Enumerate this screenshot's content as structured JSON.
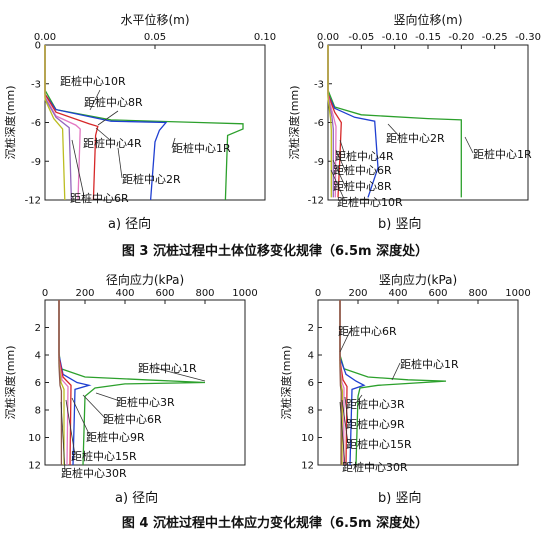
{
  "figure3": {
    "caption": "图 3   沉桩过程中土体位移变化规律（6.5m 深度处）",
    "sub_a": "a) 径向",
    "sub_b": "b) 竖向"
  },
  "figure4": {
    "caption": "图 4   沉桩过程中土体应力变化规律（6.5m 深度处）",
    "sub_a": "a) 径向",
    "sub_b": "b) 竖向"
  },
  "chart_data": [
    {
      "id": "fig3a",
      "type": "line",
      "title": "水平位移(m)",
      "ylabel": "沉桩深度(mm)",
      "xlim": [
        0,
        0.1
      ],
      "x_ticks": [
        0.0,
        0.05,
        0.1
      ],
      "x_tick_labels": [
        "0.00",
        "0.05",
        "0.10"
      ],
      "ylim": [
        -12,
        0
      ],
      "y_ticks": [
        0,
        -3,
        -6,
        -9,
        -12
      ],
      "series": [
        {
          "name": "距桩中心1R",
          "color": "#2ca02c",
          "points": [
            [
              0,
              0
            ],
            [
              0,
              -3.5
            ],
            [
              0.005,
              -5.0
            ],
            [
              0.03,
              -5.8
            ],
            [
              0.07,
              -6.0
            ],
            [
              0.09,
              -6.1
            ],
            [
              0.09,
              -6.5
            ],
            [
              0.083,
              -7.0
            ],
            [
              0.082,
              -12
            ]
          ]
        },
        {
          "name": "距桩中心2R",
          "color": "#1f3fd1",
          "points": [
            [
              0,
              0
            ],
            [
              0,
              -3.8
            ],
            [
              0.005,
              -5.0
            ],
            [
              0.03,
              -5.9
            ],
            [
              0.055,
              -6.0
            ],
            [
              0.052,
              -6.6
            ],
            [
              0.05,
              -7.5
            ],
            [
              0.048,
              -12
            ]
          ]
        },
        {
          "name": "距桩中心4R",
          "color": "#d62728",
          "points": [
            [
              0,
              0
            ],
            [
              0,
              -3.8
            ],
            [
              0.005,
              -5.2
            ],
            [
              0.02,
              -6.1
            ],
            [
              0.024,
              -6.3
            ],
            [
              0.023,
              -7.0
            ],
            [
              0.022,
              -12
            ]
          ]
        },
        {
          "name": "距桩中心6R",
          "color": "#e377c2",
          "points": [
            [
              0,
              0
            ],
            [
              0,
              -4.0
            ],
            [
              0.005,
              -5.5
            ],
            [
              0.014,
              -6.2
            ],
            [
              0.016,
              -6.5
            ],
            [
              0.015,
              -12
            ]
          ]
        },
        {
          "name": "距桩中心8R",
          "color": "#9467bd",
          "points": [
            [
              0,
              0
            ],
            [
              0,
              -4.1
            ],
            [
              0.005,
              -5.6
            ],
            [
              0.011,
              -6.4
            ],
            [
              0.012,
              -12
            ]
          ]
        },
        {
          "name": "距桩中心10R",
          "color": "#bcbd22",
          "points": [
            [
              0,
              0
            ],
            [
              0,
              -4.2
            ],
            [
              0.004,
              -5.7
            ],
            [
              0.008,
              -6.5
            ],
            [
              0.009,
              -12
            ]
          ]
        }
      ],
      "labels": [
        "距桩中心10R",
        "距桩中心8R",
        "距桩中心4R",
        "距桩中心1R",
        "距桩中心2R",
        "距桩中心6R"
      ]
    },
    {
      "id": "fig3b",
      "type": "line",
      "title": "竖向位移(m)",
      "ylabel": "沉桩深度(mm)",
      "xlim": [
        0,
        -0.3
      ],
      "x_ticks": [
        0,
        -0.05,
        -0.1,
        -0.15,
        -0.2,
        -0.25,
        -0.3
      ],
      "x_tick_labels": [
        "0.00",
        "-0.05",
        "-0.10",
        "-0.15",
        "-0.20",
        "-0.25",
        "-0.30"
      ],
      "ylim": [
        -12,
        0
      ],
      "y_ticks": [
        0,
        -3,
        -6,
        -9,
        -12
      ],
      "series": [
        {
          "name": "距桩中心1R",
          "color": "#2ca02c",
          "points": [
            [
              0,
              0
            ],
            [
              0,
              -3.5
            ],
            [
              -0.01,
              -4.8
            ],
            [
              -0.05,
              -5.4
            ],
            [
              -0.15,
              -5.7
            ],
            [
              -0.2,
              -5.8
            ],
            [
              -0.2,
              -11.8
            ]
          ]
        },
        {
          "name": "距桩中心2R",
          "color": "#1f3fd1",
          "points": [
            [
              0,
              0
            ],
            [
              0,
              -3.8
            ],
            [
              -0.01,
              -4.9
            ],
            [
              -0.04,
              -5.6
            ],
            [
              -0.07,
              -5.9
            ],
            [
              -0.075,
              -9.5
            ],
            [
              -0.06,
              -11.8
            ]
          ]
        },
        {
          "name": "距桩中心4R",
          "color": "#d62728",
          "points": [
            [
              0,
              0
            ],
            [
              0,
              -3.8
            ],
            [
              -0.01,
              -5.2
            ],
            [
              -0.02,
              -6.0
            ],
            [
              -0.018,
              -8.5
            ],
            [
              -0.015,
              -11.8
            ]
          ]
        },
        {
          "name": "距桩中心6R",
          "color": "#e377c2",
          "points": [
            [
              0,
              0
            ],
            [
              0,
              -3.9
            ],
            [
              -0.008,
              -5.5
            ],
            [
              -0.012,
              -6.3
            ],
            [
              -0.011,
              -11.8
            ]
          ]
        },
        {
          "name": "距桩中心8R",
          "color": "#9467bd",
          "points": [
            [
              0,
              0
            ],
            [
              0,
              -4.0
            ],
            [
              -0.006,
              -5.6
            ],
            [
              -0.008,
              -6.5
            ],
            [
              -0.008,
              -11.8
            ]
          ]
        },
        {
          "name": "距桩中心10R",
          "color": "#bcbd22",
          "points": [
            [
              0,
              0
            ],
            [
              0,
              -4.1
            ],
            [
              -0.004,
              -5.8
            ],
            [
              -0.005,
              -6.6
            ],
            [
              -0.005,
              -11.8
            ]
          ]
        }
      ],
      "labels": [
        "距桩中心2R",
        "距桩中心1R",
        "距桩中心4R",
        "距桩中心6R",
        "距桩中心8R",
        "距桩中心10R"
      ]
    },
    {
      "id": "fig4a",
      "type": "line",
      "title": "径向应力(kPa)",
      "ylabel": "沉桩深度(mm)",
      "xlim": [
        0,
        1000
      ],
      "x_ticks": [
        0,
        200,
        400,
        600,
        800,
        1000
      ],
      "ylim": [
        12,
        0
      ],
      "y_ticks": [
        2,
        4,
        6,
        8,
        10,
        12
      ],
      "series": [
        {
          "name": "距桩中心1R",
          "color": "#2ca02c",
          "points": [
            [
              70,
              0
            ],
            [
              70,
              3.8
            ],
            [
              80,
              5.0
            ],
            [
              200,
              5.6
            ],
            [
              500,
              5.8
            ],
            [
              800,
              6.0
            ],
            [
              400,
              6.1
            ],
            [
              250,
              6.4
            ],
            [
              200,
              7.0
            ],
            [
              190,
              12
            ]
          ]
        },
        {
          "name": "距桩中心3R",
          "color": "#1f3fd1",
          "points": [
            [
              70,
              0
            ],
            [
              70,
              4.0
            ],
            [
              90,
              5.4
            ],
            [
              160,
              6.0
            ],
            [
              220,
              6.2
            ],
            [
              150,
              6.5
            ],
            [
              140,
              12
            ]
          ]
        },
        {
          "name": "距桩中心6R",
          "color": "#d62728",
          "points": [
            [
              70,
              0
            ],
            [
              70,
              4.2
            ],
            [
              90,
              5.6
            ],
            [
              130,
              6.2
            ],
            [
              125,
              12
            ]
          ]
        },
        {
          "name": "距桩中心9R",
          "color": "#e377c2",
          "points": [
            [
              70,
              0
            ],
            [
              70,
              4.4
            ],
            [
              85,
              5.8
            ],
            [
              115,
              6.3
            ],
            [
              110,
              12
            ]
          ]
        },
        {
          "name": "距桩中心15R",
          "color": "#bcbd22",
          "points": [
            [
              70,
              0
            ],
            [
              70,
              4.6
            ],
            [
              80,
              6.0
            ],
            [
              95,
              6.5
            ],
            [
              95,
              12
            ]
          ]
        },
        {
          "name": "距桩中心30R",
          "color": "#8c564b",
          "points": [
            [
              70,
              0
            ],
            [
              70,
              4.8
            ],
            [
              75,
              6.2
            ],
            [
              82,
              6.6
            ],
            [
              82,
              12
            ]
          ]
        }
      ],
      "labels": [
        "距桩中心1R",
        "距桩中心3R",
        "距桩中心6R",
        "距桩中心9R",
        "距桩中心15R",
        "距桩中心30R"
      ]
    },
    {
      "id": "fig4b",
      "type": "line",
      "title": "竖向应力(kPa)",
      "ylabel": "沉桩深度(mm)",
      "xlim": [
        0,
        1000
      ],
      "x_ticks": [
        0,
        200,
        400,
        600,
        800,
        1000
      ],
      "ylim": [
        12,
        0
      ],
      "y_ticks": [
        2,
        4,
        6,
        8,
        10,
        12
      ],
      "series": [
        {
          "name": "距桩中心1R",
          "color": "#2ca02c",
          "points": [
            [
              110,
              0
            ],
            [
              110,
              4.0
            ],
            [
              130,
              5.0
            ],
            [
              250,
              5.6
            ],
            [
              450,
              5.8
            ],
            [
              640,
              5.9
            ],
            [
              300,
              6.2
            ],
            [
              210,
              6.4
            ],
            [
              200,
              7.0
            ],
            [
              190,
              12
            ]
          ]
        },
        {
          "name": "距桩中心3R",
          "color": "#1f3fd1",
          "points": [
            [
              110,
              0
            ],
            [
              110,
              4.2
            ],
            [
              140,
              5.4
            ],
            [
              190,
              5.9
            ],
            [
              230,
              6.2
            ],
            [
              170,
              6.5
            ],
            [
              160,
              12
            ]
          ]
        },
        {
          "name": "距桩中心6R",
          "color": "#d62728",
          "points": [
            [
              110,
              0
            ],
            [
              110,
              4.4
            ],
            [
              125,
              5.8
            ],
            [
              145,
              6.3
            ],
            [
              140,
              12
            ]
          ]
        },
        {
          "name": "距桩中心9R",
          "color": "#e377c2",
          "points": [
            [
              110,
              0
            ],
            [
              110,
              4.6
            ],
            [
              120,
              6.0
            ],
            [
              130,
              6.4
            ],
            [
              128,
              12
            ]
          ]
        },
        {
          "name": "距桩中心15R",
          "color": "#bcbd22",
          "points": [
            [
              110,
              0
            ],
            [
              110,
              4.8
            ],
            [
              115,
              6.1
            ],
            [
              122,
              6.6
            ],
            [
              120,
              12
            ]
          ]
        },
        {
          "name": "距桩中心30R",
          "color": "#8c564b",
          "points": [
            [
              110,
              0
            ],
            [
              110,
              5.0
            ],
            [
              112,
              6.2
            ],
            [
              116,
              6.7
            ],
            [
              115,
              12
            ]
          ]
        }
      ],
      "labels": [
        "距桩中心6R",
        "距桩中心1R",
        "距桩中心3R",
        "距桩中心9R",
        "距桩中心15R",
        "距桩中心30R"
      ]
    }
  ]
}
